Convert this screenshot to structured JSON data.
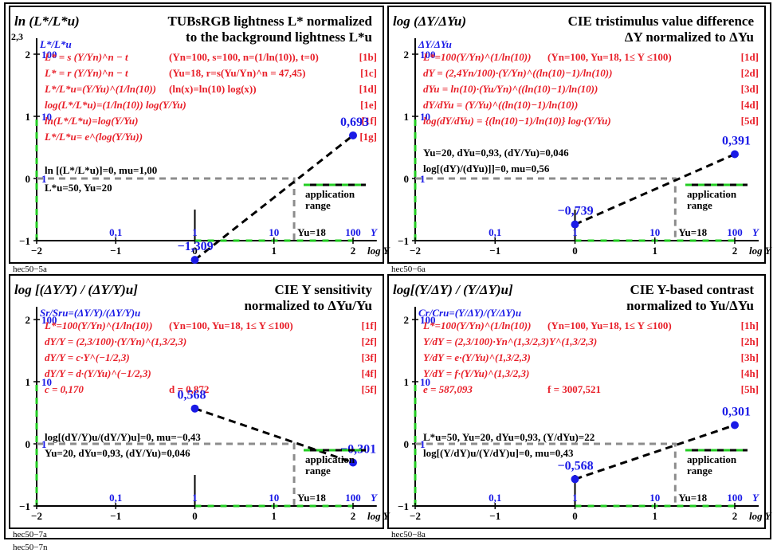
{
  "page_code": "hec50−7n",
  "colors": {
    "red": "#e8202a",
    "blue": "#1a1ae6",
    "black": "#000000",
    "gray": "#8c8c8c",
    "green": "#22cc22"
  },
  "panels": [
    {
      "code": "hec50−5a",
      "ylabel": "ln (L*/L*u)",
      "title1": "TUBsRGB lightness L* normalized",
      "title2": "to the background lightness L*u",
      "extra_y_tick": "2,3",
      "series_label": "L*/L*u",
      "formulas": [
        {
          "text": "L* = s (Y/Yn)^n − t",
          "param": "(Yn=100, s=100, n=(1/ln(10)), t=0)",
          "tag": "[1b]"
        },
        {
          "text": "L* = r (Y/Yn)^n − t",
          "param": "(Yu=18, r=s(Yu/Yn)^n = 47,45)",
          "tag": "[1c]"
        },
        {
          "text": "L*/L*u=(Y/Yu)^(1/ln(10))",
          "param": "(ln(x)=ln(10) log(x))",
          "tag": "[1d]"
        },
        {
          "text": "log(L*/L*u)=(1/ln(10)) log(Y/Yu)",
          "param": "",
          "tag": "[1e]"
        },
        {
          "text": "ln(L*/L*u)=log(Y/Yu)",
          "param": "",
          "tag": "[1f]"
        },
        {
          "text": "L*/L*u= e^(log(Y/Yu))",
          "param": "",
          "tag": "[1g]"
        }
      ],
      "black_notes": [
        "ln [(L*/L*u)]=0, mu=1,00",
        "L*u=50, Yu=20"
      ],
      "point_start": {
        "x": 0,
        "y": -1.309,
        "label": "−1,309"
      },
      "point_end": {
        "x": 2,
        "y": 0.693,
        "label": "0,693"
      },
      "ref_x": 1.255,
      "application_range": "application range",
      "yu_label": "Yu=18"
    },
    {
      "code": "hec50−6a",
      "ylabel": "log (ΔY/ΔYu)",
      "title1": "CIE tristimulus value difference",
      "title2": "ΔY normalized to ΔYu",
      "extra_y_tick": "",
      "series_label": "ΔY/ΔYu",
      "formulas": [
        {
          "text": "L*=100(Y/Yn)^(1/ln(10))",
          "param": "(Yn=100, Yu=18, 1≤ Y ≤100)",
          "tag": "[1d]"
        },
        {
          "text": "dY = (2,4Yn/100)·(Y/Yn)^((ln(10)−1)/ln(10))",
          "param": "",
          "tag": "[2d]"
        },
        {
          "text": "dYu = ln(10)·(Yu/Yn)^((ln(10)−1)/ln(10))",
          "param": "",
          "tag": "[3d]"
        },
        {
          "text": "dY/dYu = (Y/Yu)^((ln(10)−1)/ln(10))",
          "param": "",
          "tag": "[4d]"
        },
        {
          "text": "log(dY/dYu) = {(ln(10)−1)/ln(10)} log·(Y/Yu)",
          "param": "",
          "tag": "[5d]"
        }
      ],
      "black_notes": [
        "Yu=20, dYu=0,93, (dY/Yu)=0,046",
        "log[(dY)/(dYu)]]=0, mu=0,56"
      ],
      "point_start": {
        "x": 0,
        "y": -0.739,
        "label": "−0,739"
      },
      "point_end": {
        "x": 2,
        "y": 0.391,
        "label": "0,391"
      },
      "ref_x": 1.255,
      "application_range": "application range",
      "yu_label": "Yu=18"
    },
    {
      "code": "hec50−7a",
      "ylabel": "log [(ΔY/Y) / (ΔY/Y)u]",
      "title1": "CIE Y sensitivity",
      "title2": "normalized to ΔYu/Yu",
      "extra_y_tick": "",
      "series_label": "Sr/Sru=(ΔY/Y)/(ΔY/Y)u",
      "formulas": [
        {
          "text": "L*=100(Y/Yn)^(1/ln(10))",
          "param": "(Yn=100, Yu=18, 1≤ Y ≤100)",
          "tag": "[1f]"
        },
        {
          "text": "dY/Y = (2,3/100)·(Y/Yn)^(1,3/2,3)",
          "param": "",
          "tag": "[2f]"
        },
        {
          "text": "dY/Y = c·Y^(−1/2,3)",
          "param": "",
          "tag": "[3f]"
        },
        {
          "text": "dY/Y = d·(Y/Yu)^(−1/2,3)",
          "param": "",
          "tag": "[4f]"
        },
        {
          "text": "c = 0,170",
          "param": "d = 0,872",
          "tag": "[5f]"
        }
      ],
      "black_notes": [
        "log[(dY/Y)u/(dY/Y)u]=0, mu=−0,43",
        "Yu=20, dYu=0,93, (dY/Yu)=0,046"
      ],
      "point_start": {
        "x": 0,
        "y": 0.568,
        "label": "0,568"
      },
      "point_end": {
        "x": 2,
        "y": -0.301,
        "label": "−0,301"
      },
      "ref_x": 1.255,
      "application_range": "application range",
      "yu_label": "Yu=18"
    },
    {
      "code": "hec50−8a",
      "ylabel": "log[(Y/ΔY) / (Y/ΔY)u]",
      "title1": "CIE Y-based contrast",
      "title2": "normalized to Yu/ΔYu",
      "extra_y_tick": "",
      "series_label": "Cr/Cru=(Y/ΔY)/(Y/ΔY)u",
      "formulas": [
        {
          "text": "L*=100(Y/Yn)^(1/ln(10))",
          "param": "(Yn=100, Yu=18, 1≤ Y ≤100)",
          "tag": "[1h]"
        },
        {
          "text": "Y/dY = (2,3/100)·Yn^(1,3/2,3)Y^(1,3/2,3)",
          "param": "",
          "tag": "[2h]"
        },
        {
          "text": "Y/dY = e·(Y/Yu)^(1,3/2,3)",
          "param": "",
          "tag": "[3h]"
        },
        {
          "text": "Y/dY = f·(Y/Yu)^(1,3/2,3)",
          "param": "",
          "tag": "[4h]"
        },
        {
          "text": "e = 587,093",
          "param": "f = 3007,521",
          "tag": "[5h]"
        }
      ],
      "black_notes": [
        "L*u=50, Yu=20, dYu=0,93, (Y/dYu)=22",
        "log[(Y/dY)u/(Y/dY)u]=0, mu=0,43"
      ],
      "point_start": {
        "x": 0,
        "y": -0.568,
        "label": "−0,568"
      },
      "point_end": {
        "x": 2,
        "y": 0.301,
        "label": "0,301"
      },
      "ref_x": 1.255,
      "application_range": "application range",
      "yu_label": "Yu=18"
    }
  ],
  "axes": {
    "x_ticks": [
      "−2",
      "−1",
      "0",
      "1",
      "2"
    ],
    "x_top_ticks": [
      "0,1",
      "1",
      "10",
      "100"
    ],
    "x_label": "log Y",
    "y_unit": "Y",
    "y_ticks": [
      "−1",
      "0",
      "1",
      "2"
    ],
    "y_blue_ticks": [
      "1",
      "10",
      "100"
    ],
    "xlim": [
      -2,
      2.3
    ],
    "ylim": [
      -1,
      2.4
    ]
  }
}
